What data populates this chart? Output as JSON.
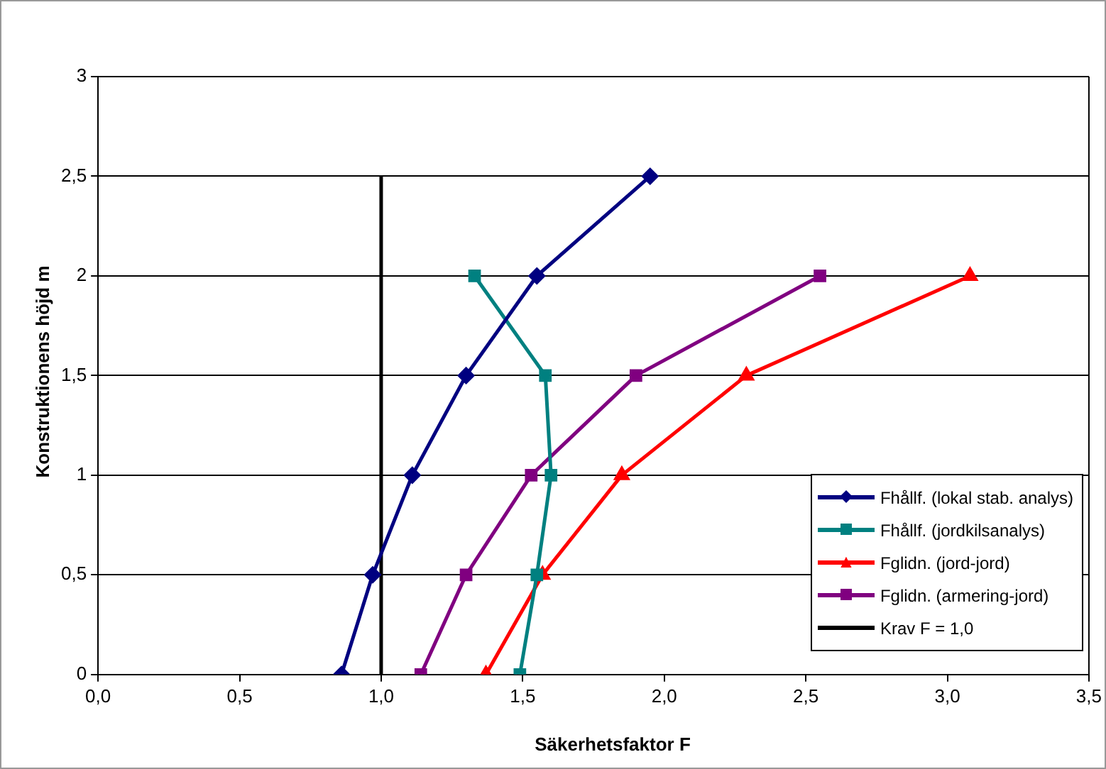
{
  "chart_data": {
    "type": "line",
    "xlabel": "Säkerhetsfaktor F",
    "ylabel": "Konstruktionens höjd m",
    "xlim": [
      0,
      3.5
    ],
    "xticks": [
      {
        "value": 0,
        "label": "0,0"
      },
      {
        "value": 0.5,
        "label": "0,5"
      },
      {
        "value": 1,
        "label": "1,0"
      },
      {
        "value": 1.5,
        "label": "1,5"
      },
      {
        "value": 2,
        "label": "2,0"
      },
      {
        "value": 2.5,
        "label": "2,5"
      },
      {
        "value": 3,
        "label": "3,0"
      },
      {
        "value": 3.5,
        "label": "3,5"
      }
    ],
    "ylim": [
      0,
      3
    ],
    "yticks": [
      0,
      {
        "value": 0.5,
        "label": "0,5"
      },
      1,
      {
        "value": 1.5,
        "label": "1,5"
      },
      2,
      {
        "value": 2.5,
        "label": "2,5"
      },
      3
    ],
    "grid": "y",
    "legend": "bottom right",
    "line_style": "solid",
    "series": [
      {
        "name": "Fhållf. (lokal stab. analys)",
        "color": "#000080",
        "marker": "diamond",
        "x": [
          0.86,
          0.97,
          1.11,
          1.3,
          1.55,
          1.95
        ],
        "values": [
          0,
          0.5,
          1,
          1.5,
          2,
          2.5
        ]
      },
      {
        "name": "Fhållf. (jordkilsanalys)",
        "color": "#008080",
        "marker": "square",
        "x": [
          1.49,
          1.55,
          1.6,
          1.58,
          1.33
        ],
        "values": [
          0,
          0.5,
          1,
          1.5,
          2
        ]
      },
      {
        "name": "Fglidn. (jord-jord)",
        "color": "#ff0000",
        "marker": "triangle",
        "x": [
          1.37,
          1.57,
          1.85,
          2.29,
          3.08
        ],
        "values": [
          0,
          0.5,
          1,
          1.5,
          2
        ]
      },
      {
        "name": "Fglidn. (armering-jord)",
        "color": "#800080",
        "marker": "square",
        "x": [
          1.14,
          1.3,
          1.53,
          1.9,
          2.55
        ],
        "values": [
          0,
          0.5,
          1,
          1.5,
          2
        ]
      },
      {
        "name": "Krav F = 1,0",
        "color": "#000000",
        "marker": "none",
        "x": [
          1,
          1
        ],
        "values": [
          0,
          2.5
        ]
      }
    ]
  }
}
